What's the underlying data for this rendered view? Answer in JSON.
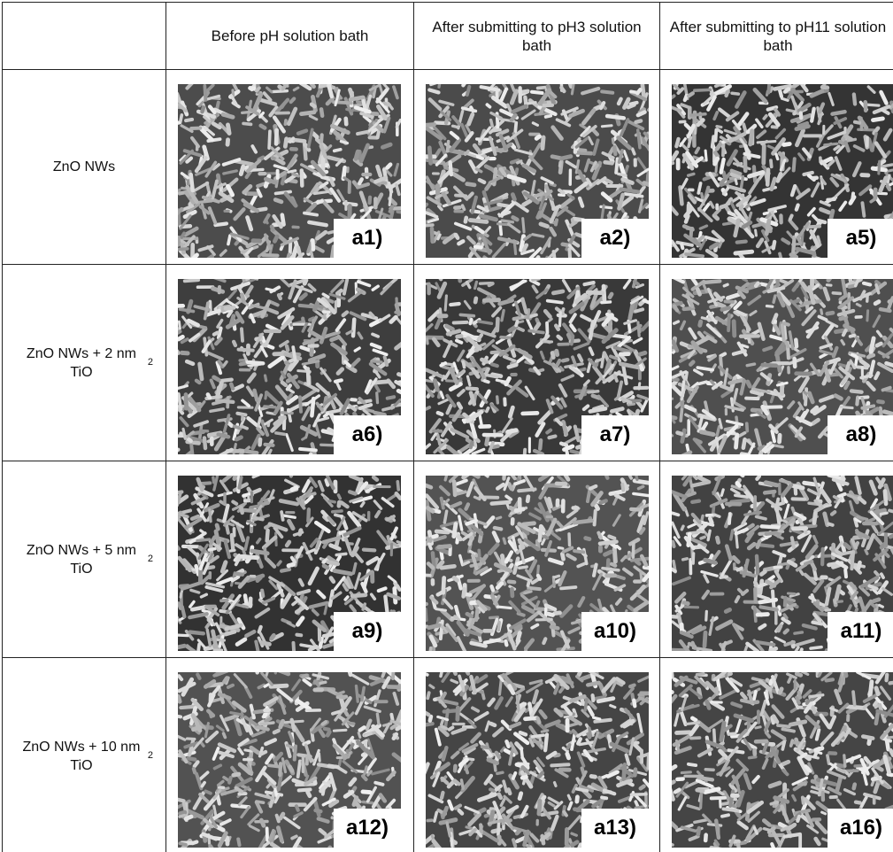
{
  "table": {
    "columns": [
      "Before pH solution bath",
      "After submitting to pH3 solution bath",
      "After submitting to pH11 solution bath"
    ],
    "rows": [
      {
        "label": {
          "text": "ZnO NWs"
        },
        "panels": [
          "a1)",
          "a2)",
          "a5)"
        ]
      },
      {
        "label": {
          "text": "ZnO NWs + 2 nm TiO",
          "sub": "2"
        },
        "panels": [
          "a6)",
          "a7)",
          "a8)"
        ]
      },
      {
        "label": {
          "text": "ZnO NWs + 5 nm TiO",
          "sub": "2"
        },
        "panels": [
          "a9)",
          "a10)",
          "a11)"
        ]
      },
      {
        "label": {
          "text": "ZnO NWs + 10 nm TiO",
          "sub": "2"
        },
        "panels": [
          "a12)",
          "a13)",
          "a16)"
        ]
      }
    ]
  }
}
